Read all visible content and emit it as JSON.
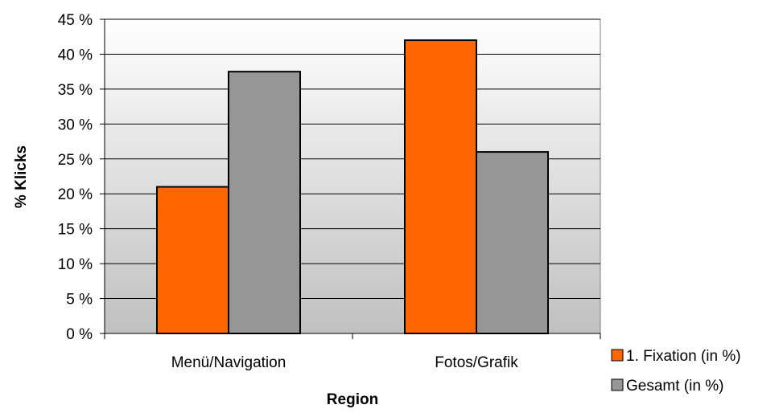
{
  "chart_data": {
    "type": "bar",
    "categories": [
      "Menü/Navigation",
      "Fotos/Grafik"
    ],
    "series": [
      {
        "name": "1. Fixation (in %)",
        "values": [
          21,
          42
        ],
        "color": "#ff6600"
      },
      {
        "name": "Gesamt (in %)",
        "values": [
          37.5,
          26
        ],
        "color": "#969696"
      }
    ],
    "ylim": [
      0,
      45
    ],
    "yticks": [
      0,
      5,
      10,
      15,
      20,
      25,
      30,
      35,
      40,
      45
    ],
    "ytick_labels": [
      "0 %",
      "5 %",
      "10 %",
      "15 %",
      "20 %",
      "25 %",
      "30 %",
      "35 %",
      "40 %",
      "45 %"
    ],
    "xlabel": "Region",
    "ylabel": "% Klicks",
    "grid": true,
    "legend_position": "right-bottom",
    "plot_background": "gradient-white-to-gray"
  }
}
